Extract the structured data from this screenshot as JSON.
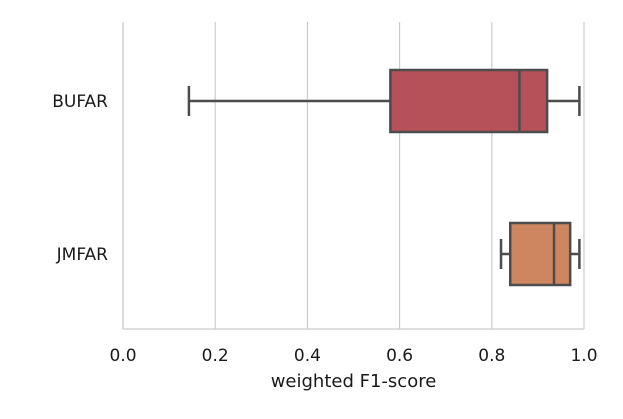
{
  "chart_data": {
    "type": "boxplot",
    "orientation": "horizontal",
    "title": "",
    "xlabel": "weighted F1-score",
    "ylabel": "",
    "xlim": [
      0.0,
      1.0
    ],
    "x_ticks": [
      "0.0",
      "0.2",
      "0.4",
      "0.6",
      "0.8",
      "1.0"
    ],
    "x_tick_values": [
      0.0,
      0.2,
      0.4,
      0.6,
      0.8,
      1.0
    ],
    "grid": "vertical",
    "categories": [
      "BUFAR",
      "JMFAR"
    ],
    "boxes": [
      {
        "label": "BUFAR",
        "whisker_low": 0.143,
        "q1": 0.58,
        "median": 0.86,
        "q3": 0.92,
        "whisker_high": 0.99,
        "color": "#b65059"
      },
      {
        "label": "JMFAR",
        "whisker_low": 0.82,
        "q1": 0.84,
        "median": 0.935,
        "q3": 0.97,
        "whisker_high": 0.99,
        "color": "#cd8660"
      }
    ]
  }
}
